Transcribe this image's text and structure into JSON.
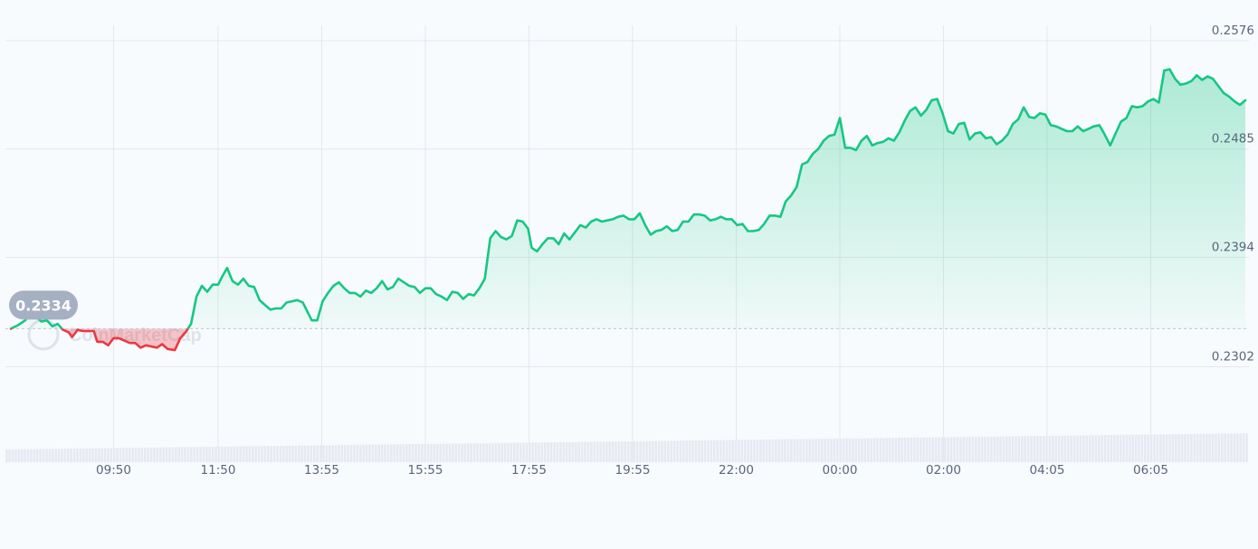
{
  "chart_data": {
    "type": "area",
    "title": "",
    "xlabel": "",
    "ylabel": "",
    "baseline_value": 0.2334,
    "baseline_label": "0.2334",
    "watermark": "CoinMarketCap",
    "ylim": [
      0.227,
      0.26
    ],
    "xlim": [
      0,
      1380
    ],
    "y_ticks": [
      {
        "value": 0.2576,
        "label": "0.2576"
      },
      {
        "value": 0.2485,
        "label": "0.2485"
      },
      {
        "value": 0.2394,
        "label": "0.2394"
      },
      {
        "value": 0.2302,
        "label": "0.2302"
      }
    ],
    "x_ticks": [
      {
        "t": 120,
        "label": "09:50"
      },
      {
        "t": 236,
        "label": "11:50"
      },
      {
        "t": 351,
        "label": "13:55"
      },
      {
        "t": 466,
        "label": "15:55"
      },
      {
        "t": 581,
        "label": "17:55"
      },
      {
        "t": 696,
        "label": "19:55"
      },
      {
        "t": 811,
        "label": "22:00"
      },
      {
        "t": 926,
        "label": "00:00"
      },
      {
        "t": 1041,
        "label": "02:00"
      },
      {
        "t": 1156,
        "label": "04:05"
      },
      {
        "t": 1271,
        "label": "06:05"
      }
    ],
    "colors": {
      "up": "#16c784",
      "down": "#ea3943",
      "grid": "#e3e8ee",
      "volume": "#e6e9f2",
      "badge_bg": "#a6b0c3"
    },
    "series": [
      {
        "values": [
          [
            6,
            0.2334
          ],
          [
            14,
            0.2337
          ],
          [
            22,
            0.2341
          ],
          [
            28,
            0.2348
          ],
          [
            34,
            0.2344
          ],
          [
            40,
            0.234
          ],
          [
            46,
            0.2341
          ],
          [
            52,
            0.2336
          ],
          [
            58,
            0.2338
          ],
          [
            64,
            0.2333
          ],
          [
            70,
            0.2331
          ],
          [
            74,
            0.2327
          ],
          [
            80,
            0.2333
          ],
          [
            86,
            0.2332
          ],
          [
            92,
            0.2332
          ],
          [
            98,
            0.2332
          ],
          [
            102,
            0.2323
          ],
          [
            108,
            0.2323
          ],
          [
            114,
            0.232
          ],
          [
            120,
            0.2326
          ],
          [
            126,
            0.2326
          ],
          [
            132,
            0.2324
          ],
          [
            138,
            0.2322
          ],
          [
            144,
            0.2322
          ],
          [
            150,
            0.2318
          ],
          [
            156,
            0.232
          ],
          [
            162,
            0.2319
          ],
          [
            168,
            0.2318
          ],
          [
            174,
            0.2321
          ],
          [
            180,
            0.2317
          ],
          [
            188,
            0.2316
          ],
          [
            194,
            0.2326
          ],
          [
            200,
            0.2331
          ],
          [
            206,
            0.2338
          ],
          [
            212,
            0.2361
          ],
          [
            218,
            0.237
          ],
          [
            224,
            0.2365
          ],
          [
            230,
            0.2371
          ],
          [
            236,
            0.2371
          ],
          [
            240,
            0.2377
          ],
          [
            246,
            0.2385
          ],
          [
            252,
            0.2374
          ],
          [
            258,
            0.2371
          ],
          [
            264,
            0.2376
          ],
          [
            270,
            0.237
          ],
          [
            276,
            0.2369
          ],
          [
            282,
            0.2358
          ],
          [
            288,
            0.2354
          ],
          [
            294,
            0.235
          ],
          [
            300,
            0.2351
          ],
          [
            306,
            0.2351
          ],
          [
            312,
            0.2356
          ],
          [
            318,
            0.2357
          ],
          [
            324,
            0.2358
          ],
          [
            330,
            0.2356
          ],
          [
            336,
            0.2347
          ],
          [
            340,
            0.2341
          ],
          [
            346,
            0.2341
          ],
          [
            352,
            0.2357
          ],
          [
            358,
            0.2364
          ],
          [
            364,
            0.237
          ],
          [
            370,
            0.2373
          ],
          [
            376,
            0.2368
          ],
          [
            382,
            0.2364
          ],
          [
            388,
            0.2364
          ],
          [
            394,
            0.2361
          ],
          [
            400,
            0.2366
          ],
          [
            406,
            0.2364
          ],
          [
            412,
            0.2368
          ],
          [
            418,
            0.2374
          ],
          [
            424,
            0.2367
          ],
          [
            430,
            0.2369
          ],
          [
            436,
            0.2376
          ],
          [
            442,
            0.2373
          ],
          [
            448,
            0.237
          ],
          [
            454,
            0.2369
          ],
          [
            460,
            0.2364
          ],
          [
            466,
            0.2368
          ],
          [
            472,
            0.2368
          ],
          [
            478,
            0.2363
          ],
          [
            484,
            0.2361
          ],
          [
            490,
            0.2358
          ],
          [
            496,
            0.2365
          ],
          [
            502,
            0.2364
          ],
          [
            508,
            0.2359
          ],
          [
            514,
            0.2363
          ],
          [
            520,
            0.2362
          ],
          [
            526,
            0.2368
          ],
          [
            532,
            0.2376
          ],
          [
            538,
            0.241
          ],
          [
            544,
            0.2416
          ],
          [
            550,
            0.2411
          ],
          [
            556,
            0.2409
          ],
          [
            562,
            0.2412
          ],
          [
            568,
            0.2425
          ],
          [
            574,
            0.2424
          ],
          [
            580,
            0.2418
          ],
          [
            584,
            0.2402
          ],
          [
            590,
            0.2399
          ],
          [
            596,
            0.2405
          ],
          [
            602,
            0.241
          ],
          [
            608,
            0.241
          ],
          [
            614,
            0.2405
          ],
          [
            620,
            0.2414
          ],
          [
            626,
            0.2409
          ],
          [
            632,
            0.2415
          ],
          [
            638,
            0.2421
          ],
          [
            644,
            0.2419
          ],
          [
            650,
            0.2424
          ],
          [
            656,
            0.2426
          ],
          [
            662,
            0.2424
          ],
          [
            668,
            0.2425
          ],
          [
            674,
            0.2426
          ],
          [
            680,
            0.2428
          ],
          [
            686,
            0.2429
          ],
          [
            692,
            0.2426
          ],
          [
            698,
            0.2426
          ],
          [
            704,
            0.2431
          ],
          [
            710,
            0.2421
          ],
          [
            716,
            0.2413
          ],
          [
            722,
            0.2416
          ],
          [
            728,
            0.2417
          ],
          [
            734,
            0.242
          ],
          [
            740,
            0.2416
          ],
          [
            746,
            0.2417
          ],
          [
            752,
            0.2424
          ],
          [
            758,
            0.2424
          ],
          [
            764,
            0.243
          ],
          [
            770,
            0.243
          ],
          [
            776,
            0.2429
          ],
          [
            782,
            0.2425
          ],
          [
            788,
            0.2426
          ],
          [
            794,
            0.2428
          ],
          [
            800,
            0.2426
          ],
          [
            806,
            0.2426
          ],
          [
            812,
            0.2421
          ],
          [
            818,
            0.2422
          ],
          [
            824,
            0.2416
          ],
          [
            830,
            0.2416
          ],
          [
            836,
            0.2417
          ],
          [
            842,
            0.2422
          ],
          [
            848,
            0.2429
          ],
          [
            854,
            0.2429
          ],
          [
            860,
            0.2428
          ],
          [
            866,
            0.2441
          ],
          [
            872,
            0.2446
          ],
          [
            878,
            0.2453
          ],
          [
            884,
            0.2472
          ],
          [
            890,
            0.2474
          ],
          [
            896,
            0.2481
          ],
          [
            902,
            0.2485
          ],
          [
            908,
            0.2492
          ],
          [
            914,
            0.2496
          ],
          [
            920,
            0.2497
          ],
          [
            926,
            0.2511
          ],
          [
            932,
            0.2486
          ],
          [
            938,
            0.2486
          ],
          [
            944,
            0.2484
          ],
          [
            950,
            0.2492
          ],
          [
            956,
            0.2496
          ],
          [
            962,
            0.2488
          ],
          [
            968,
            0.249
          ],
          [
            974,
            0.2491
          ],
          [
            980,
            0.2494
          ],
          [
            986,
            0.2492
          ],
          [
            992,
            0.2499
          ],
          [
            998,
            0.2509
          ],
          [
            1004,
            0.2517
          ],
          [
            1010,
            0.252
          ],
          [
            1016,
            0.2513
          ],
          [
            1022,
            0.2518
          ],
          [
            1028,
            0.2526
          ],
          [
            1034,
            0.2527
          ],
          [
            1040,
            0.2515
          ],
          [
            1046,
            0.25
          ],
          [
            1052,
            0.2498
          ],
          [
            1058,
            0.2506
          ],
          [
            1064,
            0.2507
          ],
          [
            1070,
            0.2493
          ],
          [
            1076,
            0.2498
          ],
          [
            1082,
            0.2499
          ],
          [
            1088,
            0.2494
          ],
          [
            1094,
            0.2495
          ],
          [
            1100,
            0.2489
          ],
          [
            1106,
            0.2492
          ],
          [
            1112,
            0.2497
          ],
          [
            1118,
            0.2506
          ],
          [
            1124,
            0.251
          ],
          [
            1130,
            0.252
          ],
          [
            1136,
            0.2512
          ],
          [
            1142,
            0.2511
          ],
          [
            1148,
            0.2515
          ],
          [
            1154,
            0.2514
          ],
          [
            1160,
            0.2505
          ],
          [
            1166,
            0.2504
          ],
          [
            1172,
            0.2502
          ],
          [
            1178,
            0.25
          ],
          [
            1184,
            0.25
          ],
          [
            1190,
            0.2504
          ],
          [
            1196,
            0.25
          ],
          [
            1202,
            0.2502
          ],
          [
            1208,
            0.2504
          ],
          [
            1214,
            0.2505
          ],
          [
            1220,
            0.2497
          ],
          [
            1226,
            0.2488
          ],
          [
            1232,
            0.2498
          ],
          [
            1238,
            0.2508
          ],
          [
            1244,
            0.2511
          ],
          [
            1250,
            0.2521
          ],
          [
            1256,
            0.252
          ],
          [
            1262,
            0.2521
          ],
          [
            1268,
            0.2525
          ],
          [
            1274,
            0.2527
          ],
          [
            1280,
            0.2524
          ],
          [
            1286,
            0.2551
          ],
          [
            1292,
            0.2552
          ],
          [
            1298,
            0.2544
          ],
          [
            1304,
            0.2539
          ],
          [
            1310,
            0.254
          ],
          [
            1316,
            0.2542
          ],
          [
            1322,
            0.2547
          ],
          [
            1328,
            0.2543
          ],
          [
            1334,
            0.2546
          ],
          [
            1340,
            0.2544
          ],
          [
            1346,
            0.2538
          ],
          [
            1352,
            0.2532
          ],
          [
            1358,
            0.2529
          ],
          [
            1364,
            0.2525
          ],
          [
            1370,
            0.2522
          ],
          [
            1376,
            0.2526
          ]
        ]
      }
    ]
  }
}
